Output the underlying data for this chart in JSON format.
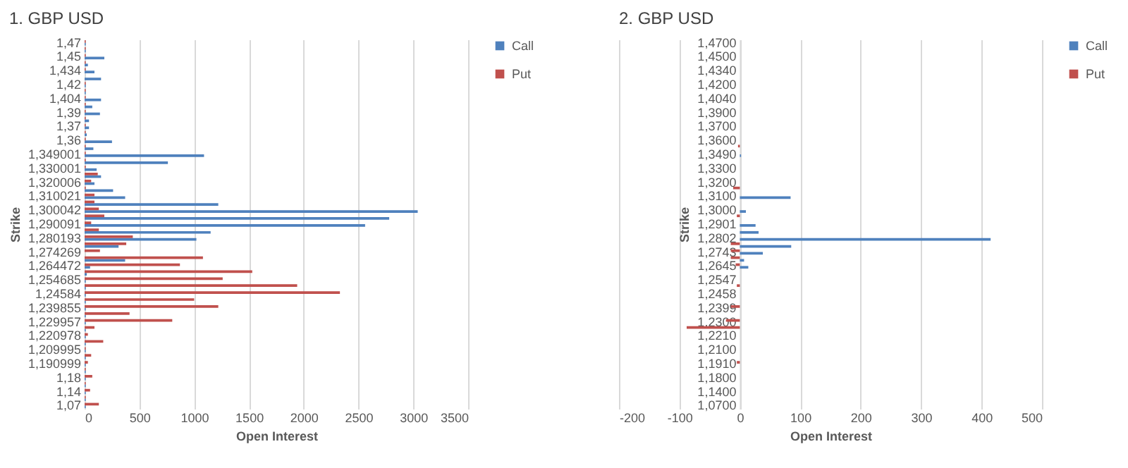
{
  "chart_data": [
    {
      "type": "bar",
      "orientation": "horizontal",
      "title": "1. GBP USD",
      "xlabel": "Open Interest",
      "ylabel": "Strike",
      "categories": [
        "1,47",
        null,
        "1,45",
        null,
        "1,434",
        null,
        "1,42",
        null,
        "1,404",
        null,
        "1,39",
        null,
        "1,37",
        null,
        "1,36",
        null,
        "1,349001",
        null,
        "1,330001",
        null,
        "1,320006",
        null,
        "1,310021",
        null,
        "1,300042",
        null,
        "1,290091",
        null,
        "1,280193",
        null,
        "1,274269",
        null,
        "1,264472",
        null,
        "1,254685",
        null,
        "1,24584",
        null,
        "1,239855",
        null,
        "1,229957",
        null,
        "1,220978",
        null,
        "1,209995",
        null,
        "1,190999",
        null,
        "1,18",
        null,
        "1,14",
        null,
        "1,07"
      ],
      "series": [
        {
          "name": "Call",
          "color": "#4f81bd",
          "values": [
            10,
            10,
            180,
            30,
            90,
            150,
            10,
            10,
            150,
            70,
            140,
            40,
            40,
            20,
            250,
            80,
            1090,
            760,
            110,
            150,
            90,
            260,
            370,
            1220,
            3040,
            2780,
            2560,
            1150,
            1020,
            310,
            0,
            370,
            50,
            20,
            10,
            10,
            10,
            10,
            10,
            10,
            10,
            10,
            10,
            10,
            10,
            10,
            10,
            10,
            10,
            10,
            10,
            10,
            10
          ]
        },
        {
          "name": "Put",
          "color": "#c0504d",
          "values": [
            10,
            10,
            10,
            10,
            10,
            0,
            10,
            10,
            10,
            10,
            10,
            10,
            10,
            10,
            10,
            10,
            10,
            10,
            10,
            120,
            60,
            10,
            90,
            90,
            130,
            180,
            60,
            130,
            440,
            380,
            140,
            1080,
            870,
            1530,
            1260,
            1940,
            2330,
            1000,
            1220,
            410,
            800,
            90,
            30,
            170,
            10,
            60,
            30,
            10,
            70,
            10,
            50,
            10,
            130
          ]
        }
      ],
      "xlim": [
        0,
        3500
      ],
      "xticks": [
        0,
        500,
        1000,
        1500,
        2000,
        2500,
        3000,
        3500
      ],
      "grid": "x",
      "legend": "right"
    },
    {
      "type": "bar",
      "orientation": "horizontal",
      "title": "2. GBP USD",
      "xlabel": "Open Interest",
      "ylabel": "Strike",
      "categories": [
        "1,4700",
        null,
        "1,4500",
        null,
        "1,4340",
        null,
        "1,4200",
        null,
        "1,4040",
        null,
        "1,3900",
        null,
        "1,3700",
        null,
        "1,3600",
        null,
        "1,3490",
        null,
        "1,3300",
        null,
        "1,3200",
        null,
        "1,3100",
        null,
        "1,3000",
        null,
        "1,2901",
        null,
        "1,2802",
        null,
        "1,2743",
        null,
        "1,2645",
        null,
        "1,2547",
        null,
        "1,2458",
        null,
        "1,2399",
        null,
        "1,2300",
        null,
        "1,2210",
        null,
        "1,2100",
        null,
        "1,1910",
        null,
        "1,1800",
        null,
        "1,1400",
        null,
        "1,0700"
      ],
      "series": [
        {
          "name": "Call",
          "color": "#4f81bd",
          "values": [
            0,
            0,
            0,
            0,
            0,
            0,
            0,
            0,
            0,
            0,
            0,
            0,
            0,
            0,
            0,
            0,
            2,
            0,
            0,
            0,
            0,
            0,
            84,
            0,
            10,
            0,
            26,
            31,
            415,
            85,
            38,
            7,
            14,
            0,
            0,
            0,
            0,
            0,
            0,
            0,
            0,
            0,
            0,
            0,
            0,
            0,
            0,
            0,
            0,
            0,
            0,
            0,
            0
          ]
        },
        {
          "name": "Put",
          "color": "#c0504d",
          "values": [
            0,
            0,
            0,
            0,
            0,
            0,
            0,
            0,
            0,
            0,
            0,
            0,
            0,
            0,
            0,
            -3,
            0,
            0,
            0,
            0,
            0,
            -11,
            0,
            0,
            0,
            -5,
            0,
            0,
            0,
            -15,
            -15,
            -15,
            -7,
            null,
            0,
            -5,
            0,
            null,
            -15,
            0,
            -23,
            -88,
            0,
            0,
            0,
            0,
            -5,
            0,
            0,
            0,
            0,
            0,
            0
          ]
        }
      ],
      "xlim": [
        -200,
        500
      ],
      "xticks": [
        -200,
        -100,
        0,
        100,
        200,
        300,
        400,
        500
      ],
      "grid": "x",
      "legend": "right"
    }
  ]
}
